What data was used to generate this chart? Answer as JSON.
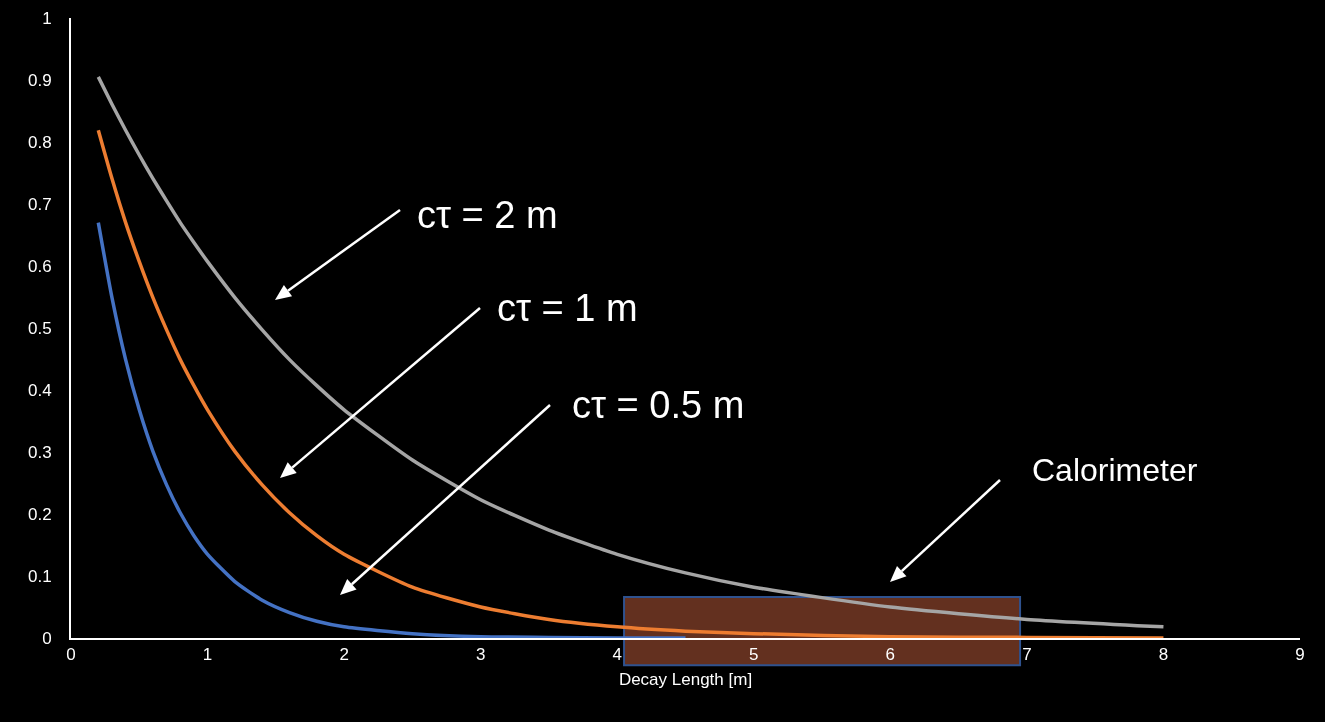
{
  "chart_data": {
    "type": "line",
    "xlabel": "Decay Length [m]",
    "x": [
      0.2,
      0.3,
      0.4,
      0.5,
      0.6,
      0.7,
      0.8,
      0.9,
      1,
      1.2,
      1.4,
      1.6,
      1.8,
      2,
      2.5,
      3,
      3.5,
      4,
      4.5,
      5,
      6,
      7,
      8
    ],
    "series": [
      {
        "color": "#4472c4",
        "values": [
          0.67,
          0.549,
          0.449,
          0.368,
          0.301,
          0.247,
          0.202,
          0.165,
          0.135,
          0.091,
          0.061,
          0.041,
          0.027,
          0.018,
          0.007,
          0.002,
          0.001,
          0.0,
          0.0,
          null,
          null,
          null,
          null
        ]
      },
      {
        "color": "#ed7d31",
        "values": [
          0.819,
          0.741,
          0.67,
          0.607,
          0.549,
          0.497,
          0.449,
          0.407,
          0.368,
          0.301,
          0.247,
          0.202,
          0.165,
          0.135,
          0.082,
          0.05,
          0.03,
          0.018,
          0.011,
          0.007,
          0.002,
          0.001,
          0.0
        ]
      },
      {
        "color": "#a5a5a5",
        "values": [
          0.905,
          0.861,
          0.819,
          0.779,
          0.741,
          0.705,
          0.67,
          0.638,
          0.607,
          0.549,
          0.497,
          0.449,
          0.407,
          0.368,
          0.287,
          0.223,
          0.174,
          0.135,
          0.105,
          0.082,
          0.05,
          0.03,
          0.018
        ]
      }
    ],
    "xlim": [
      0,
      9
    ],
    "xticks": [
      0,
      1,
      2,
      3,
      4,
      5,
      6,
      7,
      8,
      9
    ],
    "ylim": [
      0,
      1
    ],
    "yticks": [
      0,
      0.1,
      0.2,
      0.3,
      0.4,
      0.5,
      0.6,
      0.7,
      0.8,
      0.9,
      1
    ],
    "grid": false,
    "marker": "none",
    "line_style": "solid",
    "bands": [
      {
        "axis": "x",
        "from": 4.05,
        "to": 6.95,
        "color": "#63301f"
      }
    ],
    "annotations": [
      "cτ = 2 m",
      "cτ = 1 m",
      "cτ = 0.5 m",
      "Calorimeter"
    ]
  }
}
